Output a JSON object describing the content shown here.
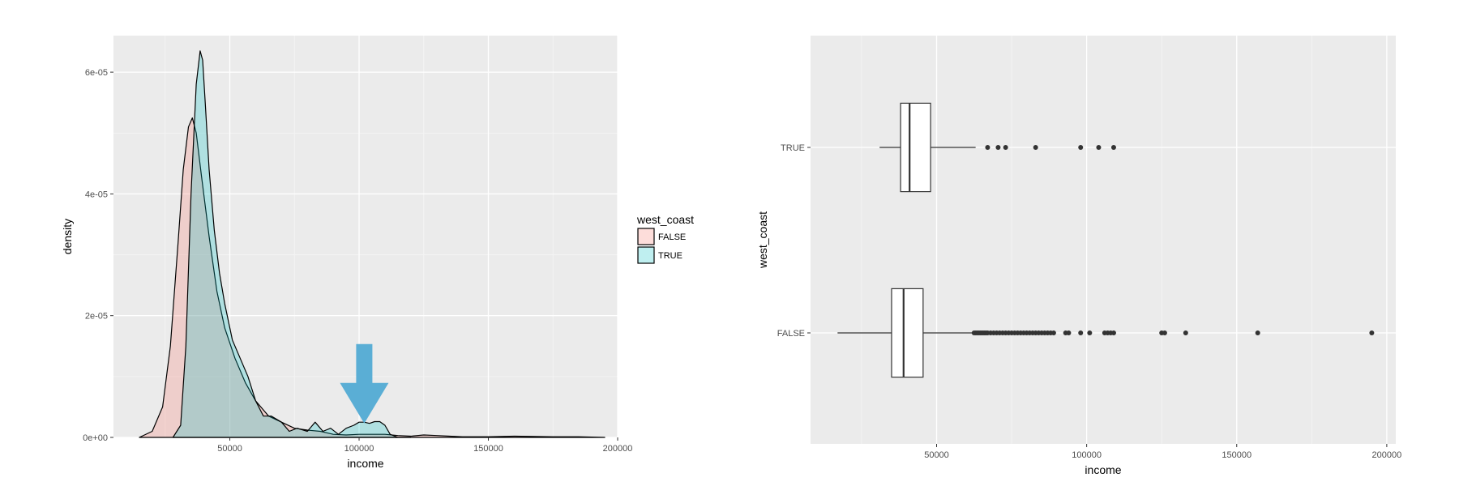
{
  "chart_data": [
    {
      "type": "area",
      "subtype": "density",
      "xlabel": "income",
      "ylabel": "density",
      "xlim": [
        5000,
        200000
      ],
      "ylim": [
        0,
        6.6e-05
      ],
      "xticks": [
        50000,
        100000,
        150000,
        200000
      ],
      "xtick_labels": [
        "50000",
        "100000",
        "150000",
        "200000"
      ],
      "yticks": [
        0,
        2e-05,
        4e-05,
        6e-05
      ],
      "ytick_labels": [
        "0e+00",
        "2e-05",
        "4e-05",
        "6e-05"
      ],
      "grid": true,
      "legend": {
        "title": "west_coast",
        "placement": "right",
        "entries": [
          {
            "label": "FALSE",
            "color": "#F8766D"
          },
          {
            "label": "TRUE",
            "color": "#00BFC4"
          }
        ]
      },
      "series": [
        {
          "name": "FALSE",
          "color": "#F8766D",
          "x": [
            15000,
            20000,
            24000,
            27000,
            30000,
            32000,
            34000,
            35500,
            37000,
            39000,
            42000,
            45000,
            48000,
            52000,
            56000,
            60000,
            65000,
            70000,
            75000,
            80000,
            85000,
            90000,
            95000,
            100000,
            105000,
            110000,
            115000,
            120000,
            125000,
            130000,
            135000,
            140000,
            150000,
            160000,
            175000,
            185000,
            195000
          ],
          "y": [
            0,
            1e-06,
            5e-06,
            1.5e-05,
            3.2e-05,
            4.4e-05,
            5.1e-05,
            5.25e-05,
            5e-05,
            4.3e-05,
            3.3e-05,
            2.4e-05,
            1.8e-05,
            1.3e-05,
            9e-06,
            6e-06,
            3.5e-06,
            2.5e-06,
            1.5e-06,
            1.2e-06,
            1e-06,
            5e-07,
            4e-07,
            5e-07,
            5e-07,
            5e-07,
            3e-07,
            2e-07,
            4e-07,
            3e-07,
            2e-07,
            1e-07,
            1e-07,
            2e-07,
            1e-07,
            1e-07,
            0
          ]
        },
        {
          "name": "TRUE",
          "color": "#00BFC4",
          "x": [
            28000,
            31000,
            33000,
            35000,
            37000,
            38500,
            39500,
            40500,
            42000,
            44000,
            46000,
            48000,
            51000,
            54000,
            57000,
            60000,
            63000,
            66000,
            70000,
            73000,
            76000,
            80000,
            83000,
            86000,
            89000,
            92000,
            95000,
            98000,
            100000,
            102000,
            104000,
            106000,
            108000,
            110000,
            112000,
            115000,
            120000
          ],
          "y": [
            0,
            2e-06,
            1.5e-05,
            4e-05,
            5.8e-05,
            6.35e-05,
            6.2e-05,
            5.5e-05,
            4.4e-05,
            3.4e-05,
            2.7e-05,
            2.2e-05,
            1.6e-05,
            1.3e-05,
            1e-05,
            6e-06,
            3.5e-06,
            3.5e-06,
            2.5e-06,
            1e-06,
            1.5e-06,
            1e-06,
            2.5e-06,
            1e-06,
            1.5e-06,
            5e-07,
            1.5e-06,
            2e-06,
            2.5e-06,
            2.5e-06,
            2.3e-06,
            2.6e-06,
            2.6e-06,
            2e-06,
            5e-07,
            0,
            0
          ]
        }
      ],
      "annotations": [
        {
          "type": "arrow",
          "color": "#5AAED5",
          "x": 102000,
          "y": 1.5e-06
        }
      ]
    },
    {
      "type": "box",
      "xlabel": "income",
      "ylabel": "west_coast",
      "xlim": [
        8000,
        203000
      ],
      "xticks": [
        50000,
        100000,
        150000,
        200000
      ],
      "xtick_labels": [
        "50000",
        "100000",
        "150000",
        "200000"
      ],
      "categories": [
        "TRUE",
        "FALSE"
      ],
      "grid": true,
      "boxes": [
        {
          "category": "TRUE",
          "whisker_low": 31000,
          "q1": 38000,
          "median": 41000,
          "q3": 48000,
          "whisker_high": 63000,
          "outliers": [
            67000,
            70500,
            73000,
            83000,
            98000,
            104000,
            109000
          ]
        },
        {
          "category": "FALSE",
          "whisker_low": 17000,
          "q1": 35000,
          "median": 39000,
          "q3": 45500,
          "whisker_high": 62000,
          "outliers": [
            62500,
            63000,
            63500,
            64000,
            64500,
            65000,
            65500,
            66000,
            66500,
            67000,
            68000,
            69000,
            70000,
            71000,
            72000,
            73000,
            74000,
            75000,
            76000,
            77000,
            78000,
            79000,
            80000,
            81000,
            82000,
            83000,
            84000,
            85000,
            86000,
            87000,
            88000,
            89000,
            93000,
            94000,
            98000,
            101000,
            106000,
            107000,
            108000,
            109000,
            125000,
            126000,
            133000,
            157000,
            195000
          ]
        }
      ]
    }
  ]
}
